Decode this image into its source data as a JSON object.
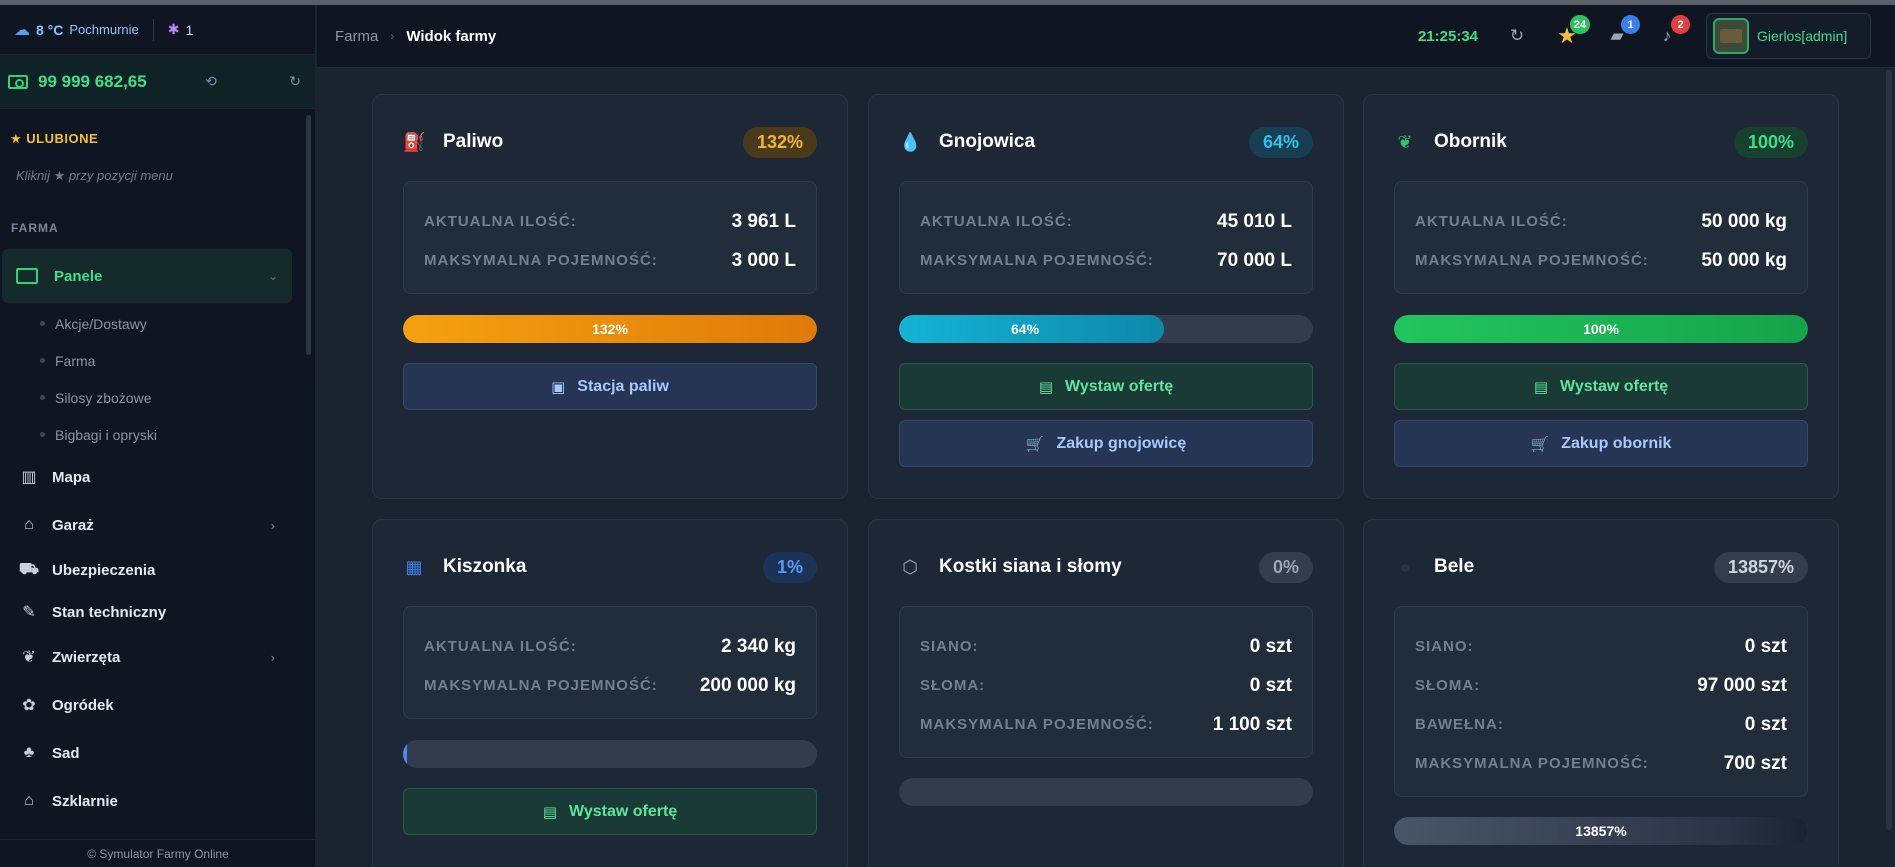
{
  "sidebar": {
    "weather": {
      "temp": "8 °C",
      "condition": "Pochmurnie",
      "bug_count": "1"
    },
    "balance": "99 999 682,65",
    "favorites_header": "ULUBIONE",
    "favorites_hint": "Kliknij ★ przy pozycji menu",
    "section": "FARMA",
    "active_item": "Panele",
    "subitems": [
      "Akcje/Dostawy",
      "Farma",
      "Silosy zbożowe",
      "Bigbagi i opryski"
    ],
    "items": [
      "Mapa",
      "Garaż",
      "Ubezpieczenia",
      "Stan techniczny",
      "Zwierzęta",
      "Ogródek",
      "Sad",
      "Szklarnie"
    ],
    "footer": "© Symulator Farmy Online"
  },
  "header": {
    "crumb_root": "Farma",
    "crumb_current": "Widok farmy",
    "clock": "21:25:34",
    "badges": {
      "favorites": "24",
      "messages": "1",
      "notifications": "2"
    },
    "user": "Gierlos[admin]"
  },
  "cards": {
    "paliwo": {
      "title": "Paliwo",
      "pct": "132%",
      "rows": [
        {
          "k": "AKTUALNA ILOŚĆ:",
          "v": "3 961 L"
        },
        {
          "k": "MAKSYMALNA POJEMNOŚĆ:",
          "v": "3 000 L"
        }
      ],
      "bar_label": "132%",
      "bar_fill": 1.0,
      "btn1": "Stacja paliw"
    },
    "gnojowica": {
      "title": "Gnojowica",
      "pct": "64%",
      "rows": [
        {
          "k": "AKTUALNA ILOŚĆ:",
          "v": "45 010 L"
        },
        {
          "k": "MAKSYMALNA POJEMNOŚĆ:",
          "v": "70 000 L"
        }
      ],
      "bar_label": "64%",
      "bar_fill": 0.64,
      "btn1": "Wystaw ofertę",
      "btn2": "Zakup gnojowicę"
    },
    "obornik": {
      "title": "Obornik",
      "pct": "100%",
      "rows": [
        {
          "k": "AKTUALNA ILOŚĆ:",
          "v": "50 000 kg"
        },
        {
          "k": "MAKSYMALNA POJEMNOŚĆ:",
          "v": "50 000 kg"
        }
      ],
      "bar_label": "100%",
      "bar_fill": 1.0,
      "btn1": "Wystaw ofertę",
      "btn2": "Zakup obornik"
    },
    "kiszonka": {
      "title": "Kiszonka",
      "pct": "1%",
      "rows": [
        {
          "k": "AKTUALNA ILOŚĆ:",
          "v": "2 340 kg"
        },
        {
          "k": "MAKSYMALNA POJEMNOŚĆ:",
          "v": "200 000 kg"
        }
      ],
      "bar_fill": 0.01,
      "btn1": "Wystaw ofertę"
    },
    "kostki": {
      "title": "Kostki siana i słomy",
      "pct": "0%",
      "rows": [
        {
          "k": "SIANO:",
          "v": "0 szt"
        },
        {
          "k": "SŁOMA:",
          "v": "0 szt"
        },
        {
          "k": "MAKSYMALNA POJEMNOŚĆ:",
          "v": "1 100 szt"
        }
      ],
      "bar_fill": 0.0
    },
    "bele": {
      "title": "Bele",
      "pct": "13857%",
      "rows": [
        {
          "k": "SIANO:",
          "v": "0 szt"
        },
        {
          "k": "SŁOMA:",
          "v": "97 000 szt"
        },
        {
          "k": "BAWEŁNA:",
          "v": "0 szt"
        },
        {
          "k": "MAKSYMALNA POJEMNOŚĆ:",
          "v": "700 szt"
        }
      ],
      "bar_label": "13857%",
      "bar_fill": 1.0
    }
  },
  "colors": {
    "accent_green": "#3ee08a",
    "orange": "#f0a020",
    "cyan": "#1ab8d8",
    "blue": "#4a8af0"
  }
}
